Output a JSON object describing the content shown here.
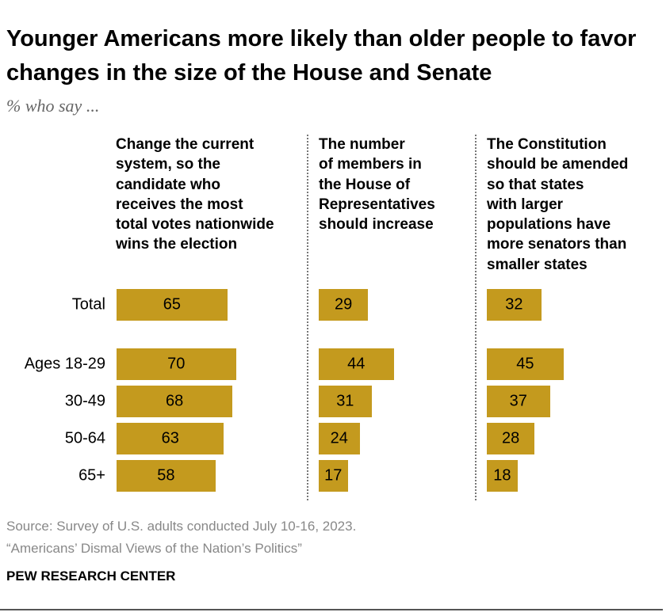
{
  "chart_data": {
    "type": "bar",
    "title": "Younger Americans more likely than older people to favor changes in the size of the House and Senate",
    "subtitle": "% who say ...",
    "categories": [
      "Total",
      "Ages 18-29",
      "30-49",
      "50-64",
      "65+"
    ],
    "panels": [
      {
        "header": "Change the current\nsystem, so the\ncandidate who\nreceives the most\ntotal votes nationwide\nwins the election",
        "values": [
          65,
          70,
          68,
          63,
          58
        ]
      },
      {
        "header": "The number\nof members in\nthe House of\nRepresentatives\nshould increase",
        "values": [
          29,
          44,
          31,
          24,
          17
        ]
      },
      {
        "header": "The Constitution\nshould be amended\nso that states\nwith larger\npopulations have\nmore senators than\nsmaller states",
        "values": [
          32,
          45,
          37,
          28,
          18
        ]
      }
    ],
    "xlim": [
      0,
      100
    ],
    "bar_color": "#C49A1E",
    "grid": false
  },
  "source": "Source: Survey of U.S. adults conducted July 10-16, 2023.",
  "report": "“Americans’ Dismal Views of the Nation’s Politics”",
  "brand": "PEW RESEARCH CENTER"
}
